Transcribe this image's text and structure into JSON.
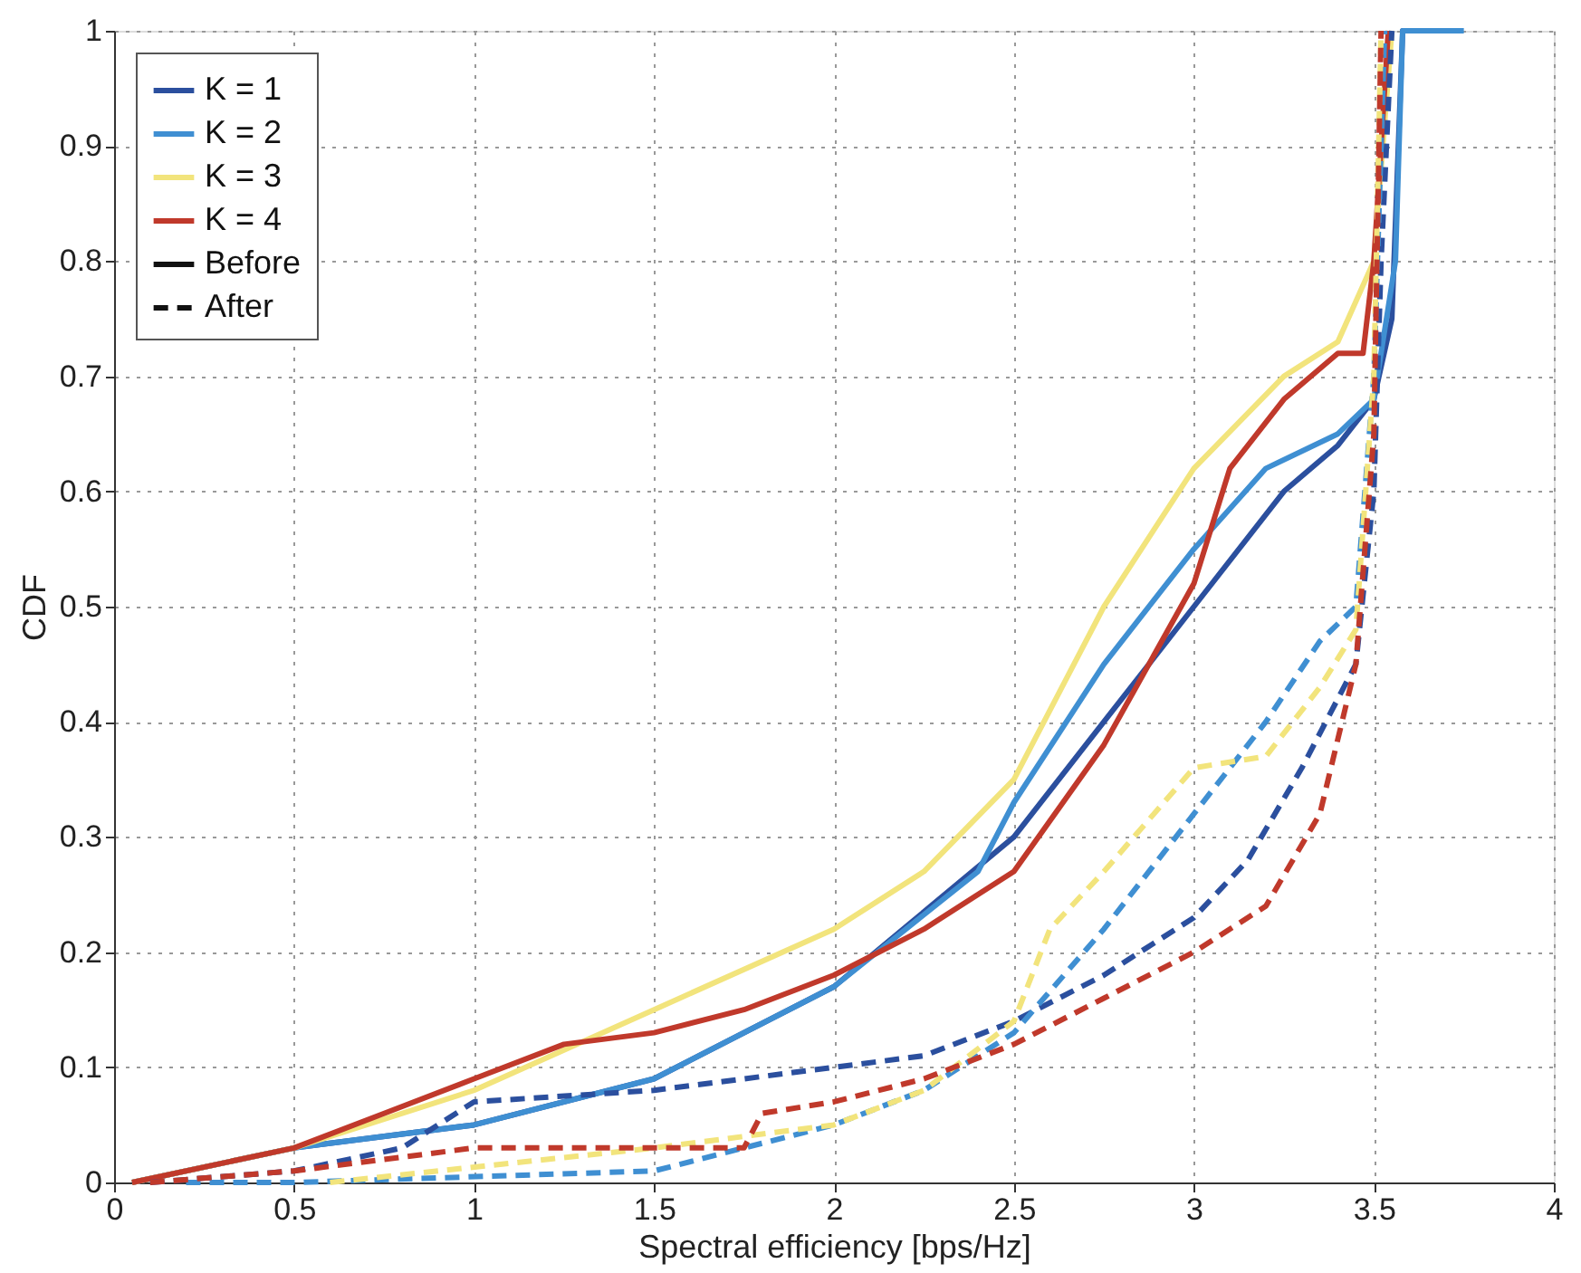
{
  "chart_data": {
    "type": "line",
    "xlabel": "Spectral efficiency [bps/Hz]",
    "ylabel": "CDF",
    "xlim": [
      0,
      4
    ],
    "xticks": [
      0,
      0.5,
      1,
      1.5,
      2,
      2.5,
      3,
      3.5,
      4
    ],
    "ylim": [
      0,
      1
    ],
    "yticks": [
      0,
      0.1,
      0.2,
      0.3,
      0.4,
      0.5,
      0.6,
      0.7,
      0.8,
      0.9,
      1
    ],
    "grid": true,
    "legend": "top left",
    "marker": "none",
    "series": [
      {
        "name": "K = 1",
        "color": "#2b4f9e",
        "line_style": "solid",
        "x": [
          0.05,
          0.5,
          1.0,
          1.5,
          2.0,
          2.5,
          2.75,
          3.0,
          3.25,
          3.4,
          3.5,
          3.55,
          3.58,
          3.6
        ],
        "values": [
          0,
          0.03,
          0.05,
          0.09,
          0.17,
          0.3,
          0.4,
          0.5,
          0.6,
          0.64,
          0.68,
          0.75,
          1,
          1
        ]
      },
      {
        "name": "K = 2",
        "color": "#3f8fd2",
        "line_style": "solid",
        "x": [
          0.05,
          0.5,
          1.0,
          1.5,
          2.0,
          2.4,
          2.5,
          2.75,
          2.85,
          3.0,
          3.2,
          3.4,
          3.5,
          3.56,
          3.58,
          3.75
        ],
        "values": [
          0,
          0.03,
          0.05,
          0.09,
          0.17,
          0.27,
          0.33,
          0.45,
          0.49,
          0.55,
          0.62,
          0.65,
          0.68,
          0.8,
          1,
          1
        ]
      },
      {
        "name": "K = 3",
        "color": "#f2e47c",
        "line_style": "solid",
        "x": [
          0.05,
          0.5,
          1.0,
          1.5,
          2.0,
          2.25,
          2.5,
          2.75,
          3.0,
          3.25,
          3.4,
          3.5,
          3.55
        ],
        "values": [
          0,
          0.03,
          0.08,
          0.15,
          0.22,
          0.27,
          0.35,
          0.5,
          0.62,
          0.7,
          0.73,
          0.8,
          1
        ]
      },
      {
        "name": "K = 4",
        "color": "#c0392b",
        "line_style": "solid",
        "x": [
          0.05,
          0.5,
          0.75,
          1.0,
          1.25,
          1.5,
          1.75,
          2.0,
          2.25,
          2.5,
          2.75,
          3.0,
          3.1,
          3.25,
          3.4,
          3.47,
          3.5,
          3.54
        ],
        "values": [
          0,
          0.03,
          0.06,
          0.09,
          0.12,
          0.13,
          0.15,
          0.18,
          0.22,
          0.27,
          0.38,
          0.52,
          0.62,
          0.68,
          0.72,
          0.72,
          0.8,
          1
        ]
      },
      {
        "name": "Before",
        "color": "#111111",
        "line_style": "solid"
      },
      {
        "name": "After",
        "color": "#111111",
        "line_style": "dashed"
      },
      {
        "color": "#2b4f9e",
        "line_style": "dashed",
        "x": [
          0.1,
          0.5,
          0.8,
          1.0,
          1.5,
          2.0,
          2.25,
          2.5,
          2.75,
          3.0,
          3.15,
          3.3,
          3.45,
          3.5,
          3.52,
          3.55
        ],
        "values": [
          0,
          0.01,
          0.03,
          0.07,
          0.08,
          0.1,
          0.11,
          0.14,
          0.18,
          0.23,
          0.28,
          0.36,
          0.45,
          0.6,
          0.8,
          1
        ]
      },
      {
        "color": "#3f8fd2",
        "line_style": "dashed",
        "x": [
          0.2,
          0.5,
          1.5,
          1.75,
          2.0,
          2.25,
          2.5,
          2.75,
          3.0,
          3.2,
          3.35,
          3.45,
          3.5,
          3.53
        ],
        "values": [
          0,
          0,
          0.01,
          0.03,
          0.05,
          0.08,
          0.13,
          0.22,
          0.32,
          0.4,
          0.47,
          0.5,
          0.7,
          1
        ]
      },
      {
        "color": "#f2e47c",
        "line_style": "dashed",
        "x": [
          0.6,
          1.5,
          2.0,
          2.25,
          2.5,
          2.6,
          2.75,
          3.0,
          3.2,
          3.35,
          3.45,
          3.5,
          3.52
        ],
        "values": [
          0,
          0.03,
          0.05,
          0.08,
          0.14,
          0.22,
          0.27,
          0.36,
          0.37,
          0.43,
          0.48,
          0.7,
          1
        ]
      },
      {
        "color": "#c0392b",
        "line_style": "dashed",
        "x": [
          0.1,
          0.5,
          1.0,
          1.5,
          1.75,
          1.8,
          2.0,
          2.25,
          2.5,
          2.75,
          3.0,
          3.2,
          3.35,
          3.45,
          3.5,
          3.52
        ],
        "values": [
          0,
          0.01,
          0.03,
          0.03,
          0.03,
          0.06,
          0.07,
          0.09,
          0.12,
          0.16,
          0.2,
          0.24,
          0.32,
          0.45,
          0.65,
          1
        ]
      }
    ]
  }
}
